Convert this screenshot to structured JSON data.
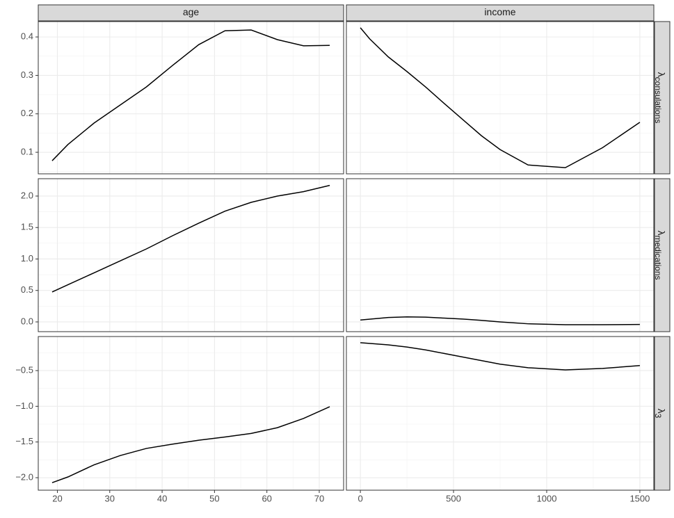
{
  "facets": {
    "columns": [
      "age",
      "income"
    ],
    "rows": [
      {
        "symbol": "λ",
        "subscript": "consulations"
      },
      {
        "symbol": "λ",
        "subscript": "medications"
      },
      {
        "symbol": "λ",
        "subscript": "3"
      }
    ]
  },
  "chart_data": [
    {
      "type": "line",
      "x": [
        19,
        22,
        27,
        32,
        37,
        42,
        47,
        52,
        57,
        62,
        67,
        72
      ],
      "values": [
        0.078,
        0.12,
        0.176,
        0.223,
        0.27,
        0.326,
        0.38,
        0.416,
        0.418,
        0.393,
        0.377,
        0.378
      ],
      "xlim": [
        16.35,
        74.65
      ],
      "xticks": [
        20,
        30,
        40,
        50,
        60,
        70
      ],
      "ylim": [
        0.044,
        0.44
      ],
      "yticks": [
        0.1,
        0.2,
        0.3,
        0.4
      ],
      "color": "#000000",
      "grid": true
    },
    {
      "type": "line",
      "x": [
        0,
        50,
        150,
        250,
        350,
        450,
        550,
        650,
        750,
        900,
        1100,
        1300,
        1500
      ],
      "values": [
        0.424,
        0.395,
        0.348,
        0.31,
        0.27,
        0.227,
        0.185,
        0.143,
        0.107,
        0.067,
        0.06,
        0.112,
        0.178
      ],
      "xlim": [
        -75,
        1575
      ],
      "xticks": [
        0,
        500,
        1000,
        1500
      ],
      "ylim": [
        0.044,
        0.44
      ],
      "yticks": [
        0.1,
        0.2,
        0.3,
        0.4
      ],
      "color": "#000000",
      "grid": true
    },
    {
      "type": "line",
      "x": [
        19,
        22,
        27,
        32,
        37,
        42,
        47,
        52,
        57,
        62,
        67,
        72
      ],
      "values": [
        0.475,
        0.59,
        0.78,
        0.97,
        1.16,
        1.37,
        1.57,
        1.76,
        1.9,
        2.0,
        2.07,
        2.17
      ],
      "xlim": [
        16.35,
        74.65
      ],
      "xticks": [
        20,
        30,
        40,
        50,
        60,
        70
      ],
      "ylim": [
        -0.155,
        2.276
      ],
      "yticks": [
        {
          "value": 0,
          "label": "0.0"
        },
        0.5,
        {
          "value": 1,
          "label": "1.0"
        },
        1.5,
        {
          "value": 2,
          "label": "2.0"
        }
      ],
      "color": "#000000",
      "grid": true
    },
    {
      "type": "line",
      "x": [
        0,
        150,
        250,
        350,
        450,
        550,
        650,
        750,
        900,
        1100,
        1300,
        1500
      ],
      "values": [
        0.03,
        0.07,
        0.08,
        0.075,
        0.06,
        0.045,
        0.025,
        0.0,
        -0.03,
        -0.045,
        -0.045,
        -0.04
      ],
      "xlim": [
        -75,
        1575
      ],
      "xticks": [
        0,
        500,
        1000,
        1500
      ],
      "ylim": [
        -0.155,
        2.276
      ],
      "yticks": [
        {
          "value": 0,
          "label": "0.0"
        },
        0.5,
        {
          "value": 1,
          "label": "1.0"
        },
        1.5,
        {
          "value": 2,
          "label": "2.0"
        }
      ],
      "color": "#000000",
      "grid": true
    },
    {
      "type": "line",
      "x": [
        19,
        22,
        27,
        32,
        37,
        42,
        47,
        52,
        57,
        62,
        67,
        72
      ],
      "values": [
        -2.07,
        -1.99,
        -1.82,
        -1.69,
        -1.59,
        -1.53,
        -1.475,
        -1.43,
        -1.38,
        -1.3,
        -1.17,
        -1.006
      ],
      "xlim": [
        16.35,
        74.65
      ],
      "xticks": [
        20,
        30,
        40,
        50,
        60,
        70
      ],
      "ylim": [
        -2.175,
        -0.023
      ],
      "yticks": [
        {
          "value": -2,
          "label": "−2.0"
        },
        {
          "value": -1.5,
          "label": "−1.5"
        },
        {
          "value": -1,
          "label": "−1.0"
        },
        {
          "value": -0.5,
          "label": "−0.5"
        }
      ],
      "color": "#000000",
      "grid": true
    },
    {
      "type": "line",
      "x": [
        0,
        150,
        250,
        350,
        450,
        550,
        650,
        750,
        900,
        1100,
        1300,
        1500
      ],
      "values": [
        -0.11,
        -0.14,
        -0.17,
        -0.21,
        -0.26,
        -0.31,
        -0.36,
        -0.41,
        -0.46,
        -0.49,
        -0.47,
        -0.43
      ],
      "xlim": [
        -75,
        1575
      ],
      "xticks": [
        0,
        500,
        1000,
        1500
      ],
      "ylim": [
        -2.175,
        -0.023
      ],
      "yticks": [
        {
          "value": -2,
          "label": "−2.0"
        },
        {
          "value": -1.5,
          "label": "−1.5"
        },
        {
          "value": -1,
          "label": "−1.0"
        },
        {
          "value": -0.5,
          "label": "−0.5"
        }
      ],
      "color": "#000000",
      "grid": true
    }
  ]
}
